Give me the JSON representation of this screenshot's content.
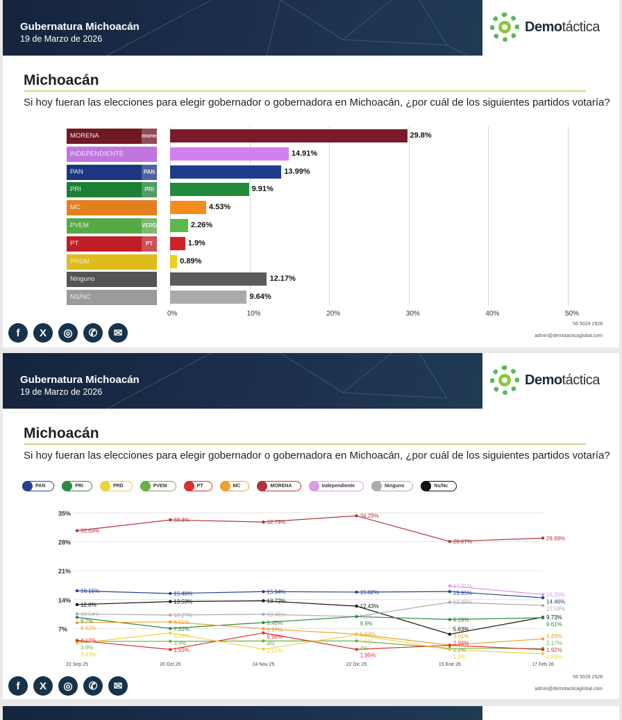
{
  "header": {
    "title": "Gubernatura Michoacán",
    "date": "19 de Marzo de 2026",
    "logo_bold": "Demo",
    "logo_light": "táctica"
  },
  "slide_title": "Michoacán",
  "question": "Si hoy fueran las elecciones para elegir gobernador o gobernadora en Michoacán, ¿por cuál de los siguientes partidos votaría?",
  "footer": {
    "phone": "56 5029 2928",
    "email": "admin@demotacticaglobal.com",
    "icons": [
      "facebook-icon",
      "x-icon",
      "instagram-icon",
      "phone-icon",
      "email-icon"
    ]
  },
  "chart_data": [
    {
      "type": "bar",
      "orientation": "horizontal",
      "categories": [
        "MORENA",
        "INDEPENDIENTE",
        "PAN",
        "PRI",
        "MC",
        "PVEM",
        "PT",
        "PRDM",
        "Ninguno",
        "NS/NC"
      ],
      "values": [
        29.8,
        14.91,
        13.99,
        9.91,
        4.53,
        2.26,
        1.9,
        0.89,
        12.17,
        9.64
      ],
      "value_labels": [
        "29.8%",
        "14.91%",
        "13.99%",
        "9.91%",
        "4.53%",
        "2.26%",
        "1.9%",
        "0.89%",
        "12.17%",
        "9.64%"
      ],
      "colors": [
        "#7b1a28",
        "#d27ff2",
        "#1f3b8c",
        "#1f8b3b",
        "#f68b1f",
        "#5db94b",
        "#d0202a",
        "#f2cc1c",
        "#5b5b5b",
        "#a9a9a9"
      ],
      "icon_labels": [
        "morena",
        "",
        "PAN",
        "PRI",
        "",
        "VERDE",
        "PT",
        "",
        "",
        ""
      ],
      "xticks": [
        "0%",
        "10%",
        "20%",
        "30%",
        "40%",
        "50%"
      ],
      "xlim": [
        0,
        50
      ]
    },
    {
      "type": "line",
      "x": [
        "22 Sep 25",
        "20 Oct 25",
        "24 Nov 25",
        "22 Dic 25",
        "15 Ene 26",
        "17 Feb 26"
      ],
      "yticks": [
        "35%",
        "28%",
        "21%",
        "14%",
        "7%"
      ],
      "ytick_values": [
        35,
        28,
        21,
        14,
        7
      ],
      "ylim": [
        0,
        35
      ],
      "legend": [
        "PAN",
        "PRI",
        "PRD",
        "PVEM",
        "PT",
        "MC",
        "MORENA",
        "Independiente",
        "Ninguno",
        "Ns/Nc"
      ],
      "series": [
        {
          "name": "MORENA",
          "color": "#b3343b",
          "values": [
            30.69,
            33.3,
            32.79,
            34.29,
            28.07,
            28.89
          ],
          "labels": true
        },
        {
          "name": "Independiente",
          "color": "#d99ae9",
          "values": [
            null,
            null,
            null,
            null,
            17.31,
            15.25
          ],
          "labels": true
        },
        {
          "name": "PAN",
          "color": "#27408f",
          "values": [
            16.15,
            15.48,
            15.94,
            15.82,
            15.95,
            14.46
          ],
          "labels": true
        },
        {
          "name": "Ns/Nc",
          "color": "#111111",
          "values": [
            12.8,
            13.53,
            13.72,
            12.43,
            5.63,
            9.73
          ],
          "labels": true
        },
        {
          "name": "Ninguno",
          "color": "#ababab",
          "values": [
            10.54,
            10.27,
            10.46,
            9.9,
            13.36,
            12.59
          ],
          "labels": true
        },
        {
          "name": "PRI",
          "color": "#2c8a3d",
          "values": [
            9.7,
            7.02,
            8.45,
            9.9,
            9.19,
            9.61
          ],
          "labels": true
        },
        {
          "name": "MC",
          "color": "#f0a030",
          "values": [
            8.42,
            8.61,
            6.97,
            5.64,
            3.01,
            4.49
          ],
          "labels": true
        },
        {
          "name": "PVEM",
          "color": "#6ab04c",
          "values": [
            3.9,
            3.9,
            4,
            4,
            2.2,
            2.17
          ],
          "labels": true
        },
        {
          "name": "PT",
          "color": "#d8302a",
          "values": [
            4.12,
            1.93,
            5.96,
            1.95,
            2.94,
            1.92
          ],
          "labels": true
        },
        {
          "name": "PRD",
          "color": "#e9d43a",
          "values": [
            3.43,
            5.93,
            2.01,
            5.5,
            1.9,
            0.89
          ],
          "labels": true
        }
      ]
    }
  ]
}
